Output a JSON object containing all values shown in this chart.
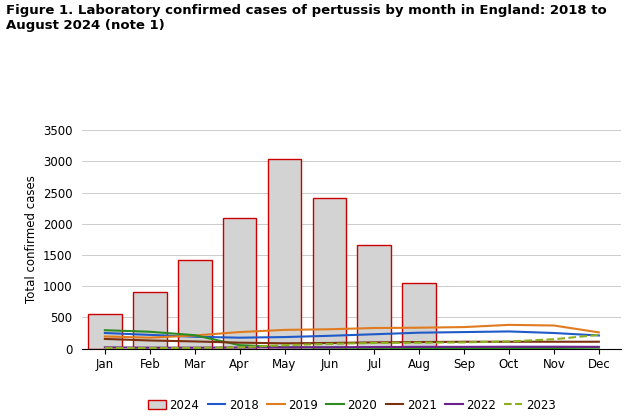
{
  "title_line1": "Figure 1. Laboratory confirmed cases of pertussis by month in England: 2018 to",
  "title_line2": "August 2024 (note 1)",
  "ylabel": "Total confirmed cases",
  "months": [
    "Jan",
    "Feb",
    "Mar",
    "Apr",
    "May",
    "Jun",
    "Jul",
    "Aug",
    "Sep",
    "Oct",
    "Nov",
    "Dec"
  ],
  "ylim": [
    0,
    3500
  ],
  "yticks": [
    0,
    500,
    1000,
    1500,
    2000,
    2500,
    3000,
    3500
  ],
  "bar_2024": [
    550,
    900,
    1420,
    2090,
    3040,
    2420,
    1660,
    1045,
    null,
    null,
    null,
    null
  ],
  "line_2018": [
    250,
    220,
    190,
    175,
    185,
    205,
    230,
    255,
    265,
    275,
    250,
    210
  ],
  "line_2019": [
    195,
    175,
    210,
    265,
    300,
    310,
    330,
    335,
    345,
    380,
    370,
    260
  ],
  "line_2020": [
    295,
    270,
    215,
    55,
    20,
    15,
    12,
    10,
    8,
    8,
    10,
    15
  ],
  "line_2021": [
    155,
    130,
    115,
    95,
    85,
    90,
    100,
    105,
    110,
    110,
    110,
    110
  ],
  "line_2022": [
    20,
    15,
    15,
    18,
    20,
    22,
    25,
    28,
    28,
    30,
    30,
    28
  ],
  "line_2023": [
    10,
    10,
    12,
    20,
    55,
    75,
    90,
    95,
    100,
    115,
    150,
    220
  ],
  "color_2024_bar": "#d3d3d3",
  "color_2024_edge": "#cc0000",
  "color_2018": "#1f5ac8",
  "color_2019": "#e07b20",
  "color_2020": "#2e8b20",
  "color_2021": "#7b3010",
  "color_2022": "#6b228c",
  "color_2023": "#8db020",
  "background_color": "#ffffff",
  "title_fontsize": 9.5,
  "axis_fontsize": 8.5,
  "tick_fontsize": 8.5,
  "legend_fontsize": 8.5
}
